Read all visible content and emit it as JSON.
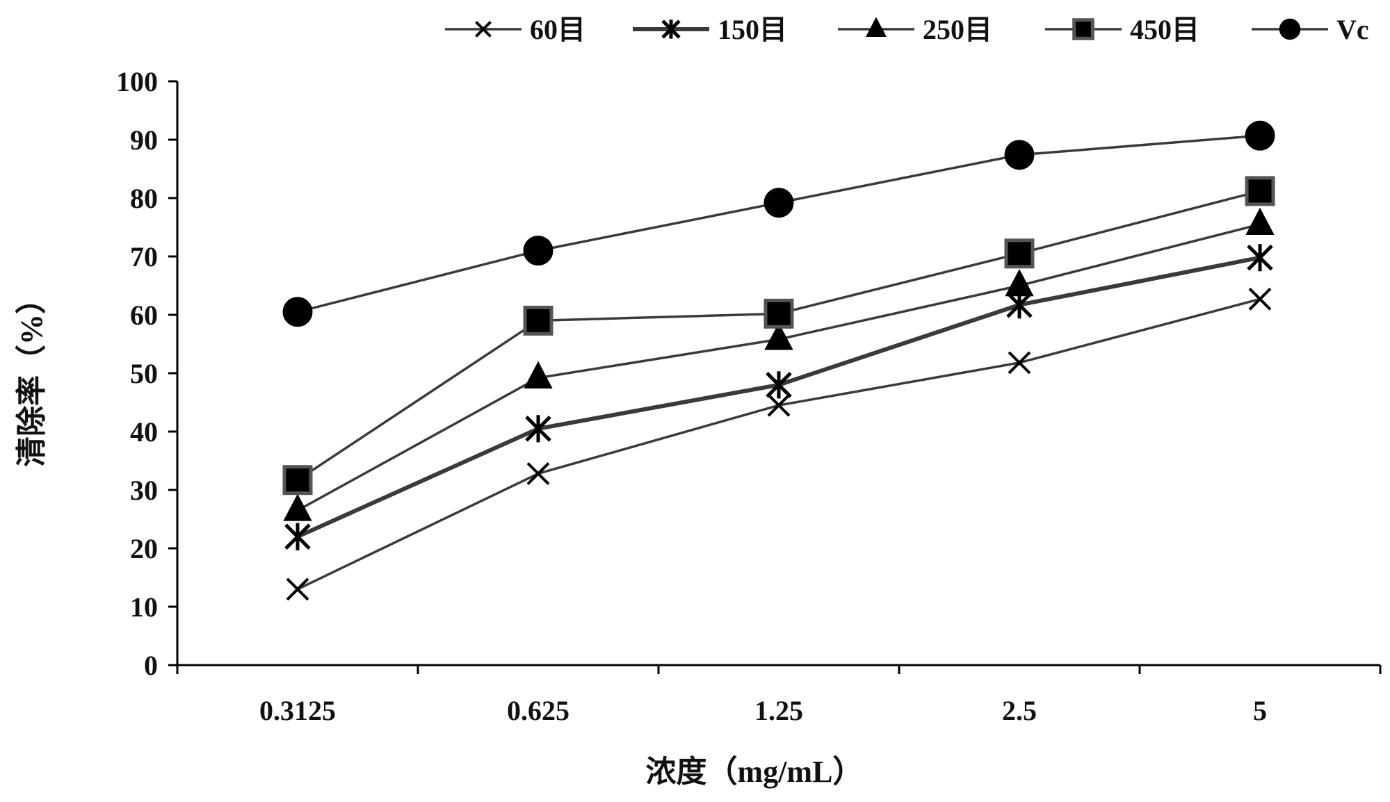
{
  "chart_data": {
    "type": "line",
    "title": "",
    "xlabel": "浓度（mg/mL）",
    "ylabel": "清除率（%）",
    "categories": [
      "0.3125",
      "0.625",
      "1.25",
      "2.5",
      "5"
    ],
    "ylim": [
      0,
      100
    ],
    "yticks": [
      "0",
      "10",
      "20",
      "30",
      "40",
      "50",
      "60",
      "70",
      "80",
      "90",
      "100"
    ],
    "legend_position": "top",
    "series": [
      {
        "name": "60目",
        "marker": "x",
        "values": [
          13.0,
          32.8,
          44.5,
          51.8,
          62.7
        ]
      },
      {
        "name": "150目",
        "marker": "asterisk",
        "values": [
          22.0,
          40.5,
          48.0,
          61.7,
          69.8
        ]
      },
      {
        "name": "250目",
        "marker": "triangle",
        "values": [
          26.5,
          49.2,
          55.8,
          65.0,
          75.5
        ]
      },
      {
        "name": "450目",
        "marker": "square",
        "values": [
          31.7,
          59.0,
          60.2,
          70.5,
          81.2
        ]
      },
      {
        "name": "Vc",
        "marker": "circle",
        "values": [
          60.5,
          71.0,
          79.2,
          87.4,
          90.7
        ]
      }
    ],
    "colors": {
      "line": "#3a3a3a",
      "marker": "#000000",
      "axis": "#000000"
    }
  }
}
